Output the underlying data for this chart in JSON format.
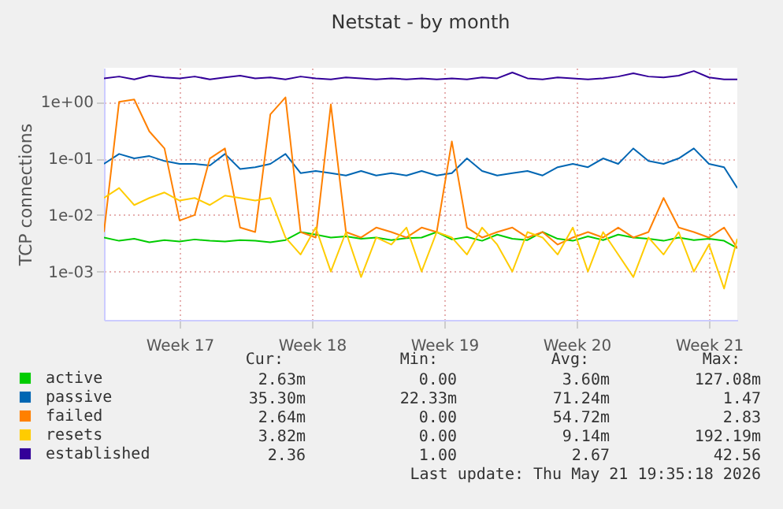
{
  "chart_data": {
    "type": "line",
    "title": "Netstat - by month",
    "ylabel": "TCP connections",
    "log": "y",
    "grid": true,
    "legend": "bottom left",
    "line_style": "solid",
    "marker": "none",
    "xlim": [
      "2026-04-19T12:00",
      "2026-05-23T00:00"
    ],
    "xticks": [
      {
        "value": "2026-04-23T12:00",
        "label": "Week 17"
      },
      {
        "value": "2026-04-30T12:00",
        "label": "Week 18"
      },
      {
        "value": "2026-05-07T12:00",
        "label": "Week 19"
      },
      {
        "value": "2026-05-14T12:00",
        "label": "Week 20"
      },
      {
        "value": "2026-05-21T12:00",
        "label": "Week 21"
      }
    ],
    "ylim": [
      0.00014,
      4
    ],
    "yticks": [
      {
        "value": 0.001,
        "label": "1e-03"
      },
      {
        "value": 0.01,
        "label": "1e-02"
      },
      {
        "value": 0.1,
        "label": "1e-01"
      },
      {
        "value": 1,
        "label": "1e+00"
      }
    ],
    "x": [
      "2026-04-19T12:00",
      "2026-04-20T07:12",
      "2026-04-21T02:24",
      "2026-04-21T21:36",
      "2026-04-22T16:48",
      "2026-04-23T12:00",
      "2026-04-24T07:12",
      "2026-04-25T02:24",
      "2026-04-25T21:36",
      "2026-04-26T16:48",
      "2026-04-27T12:00",
      "2026-04-28T07:12",
      "2026-04-29T02:24",
      "2026-04-29T21:36",
      "2026-04-30T16:48",
      "2026-05-01T12:00",
      "2026-05-02T07:12",
      "2026-05-03T02:24",
      "2026-05-03T21:36",
      "2026-05-04T16:48",
      "2026-05-05T12:00",
      "2026-05-06T07:12",
      "2026-05-07T02:24",
      "2026-05-07T21:36",
      "2026-05-08T16:48",
      "2026-05-09T12:00",
      "2026-05-10T07:12",
      "2026-05-11T02:24",
      "2026-05-11T21:36",
      "2026-05-12T16:48",
      "2026-05-13T12:00",
      "2026-05-14T07:12",
      "2026-05-15T02:24",
      "2026-05-15T21:36",
      "2026-05-16T16:48",
      "2026-05-17T12:00",
      "2026-05-18T07:12",
      "2026-05-19T02:24",
      "2026-05-19T21:36",
      "2026-05-20T16:48",
      "2026-05-21T12:00",
      "2026-05-22T07:12",
      "2026-05-23T00:00"
    ],
    "series": [
      {
        "name": "active",
        "color": "#00cc00",
        "values": [
          0.004,
          0.0035,
          0.0038,
          0.0033,
          0.0036,
          0.0034,
          0.0037,
          0.0035,
          0.0034,
          0.0036,
          0.0035,
          0.0033,
          0.0036,
          0.005,
          0.0045,
          0.004,
          0.0042,
          0.0038,
          0.004,
          0.0036,
          0.0039,
          0.004,
          0.005,
          0.0037,
          0.0041,
          0.0035,
          0.0045,
          0.0038,
          0.0036,
          0.005,
          0.0038,
          0.0035,
          0.0042,
          0.0036,
          0.0045,
          0.004,
          0.0038,
          0.0035,
          0.004,
          0.0036,
          0.0038,
          0.0035,
          0.0026
        ]
      },
      {
        "name": "passive",
        "color": "#0066b3",
        "values": [
          0.08,
          0.12,
          0.1,
          0.11,
          0.09,
          0.08,
          0.08,
          0.075,
          0.12,
          0.065,
          0.07,
          0.08,
          0.12,
          0.055,
          0.06,
          0.055,
          0.05,
          0.06,
          0.05,
          0.055,
          0.05,
          0.06,
          0.05,
          0.055,
          0.1,
          0.06,
          0.05,
          0.055,
          0.06,
          0.05,
          0.07,
          0.08,
          0.07,
          0.1,
          0.08,
          0.15,
          0.09,
          0.08,
          0.1,
          0.15,
          0.08,
          0.07,
          0.03
        ]
      },
      {
        "name": "failed",
        "color": "#ff8000",
        "values": [
          0.005,
          1.0,
          1.1,
          0.3,
          0.15,
          0.008,
          0.01,
          0.1,
          0.15,
          0.006,
          0.005,
          0.6,
          1.2,
          0.005,
          0.004,
          0.9,
          0.005,
          0.004,
          0.006,
          0.005,
          0.004,
          0.006,
          0.005,
          0.2,
          0.006,
          0.004,
          0.005,
          0.006,
          0.004,
          0.005,
          0.003,
          0.004,
          0.005,
          0.004,
          0.006,
          0.004,
          0.005,
          0.02,
          0.006,
          0.005,
          0.004,
          0.006,
          0.0026
        ]
      },
      {
        "name": "resets",
        "color": "#ffcc00",
        "values": [
          0.02,
          0.03,
          0.015,
          0.02,
          0.025,
          0.018,
          0.02,
          0.015,
          0.022,
          0.02,
          0.018,
          0.02,
          0.004,
          0.002,
          0.006,
          0.001,
          0.005,
          0.0008,
          0.004,
          0.003,
          0.006,
          0.001,
          0.005,
          0.004,
          0.002,
          0.006,
          0.003,
          0.001,
          0.005,
          0.004,
          0.002,
          0.006,
          0.001,
          0.005,
          0.002,
          0.0008,
          0.004,
          0.002,
          0.005,
          0.001,
          0.003,
          0.0005,
          0.0038
        ]
      },
      {
        "name": "established",
        "color": "#330099",
        "values": [
          2.6,
          2.8,
          2.5,
          2.9,
          2.7,
          2.6,
          2.8,
          2.5,
          2.7,
          2.9,
          2.6,
          2.7,
          2.5,
          2.8,
          2.6,
          2.5,
          2.7,
          2.6,
          2.5,
          2.6,
          2.5,
          2.6,
          2.5,
          2.6,
          2.5,
          2.7,
          2.6,
          3.3,
          2.6,
          2.5,
          2.7,
          2.6,
          2.5,
          2.6,
          2.8,
          3.2,
          2.8,
          2.7,
          2.9,
          3.5,
          2.7,
          2.5,
          2.5
        ]
      }
    ],
    "annotations": [
      "Cur:",
      "Min:",
      "Avg:",
      "Max:",
      "2.63m",
      "0.00",
      "3.60m",
      "127.08m",
      "35.30m",
      "22.33m",
      "71.24m",
      "1.47",
      "2.64m",
      "0.00",
      "54.72m",
      "2.83",
      "3.82m",
      "0.00",
      "9.14m",
      "192.19m",
      "2.36",
      "1.00",
      "2.67",
      "42.56",
      "Last update: Thu May 21 19:35:18 2026"
    ]
  }
}
